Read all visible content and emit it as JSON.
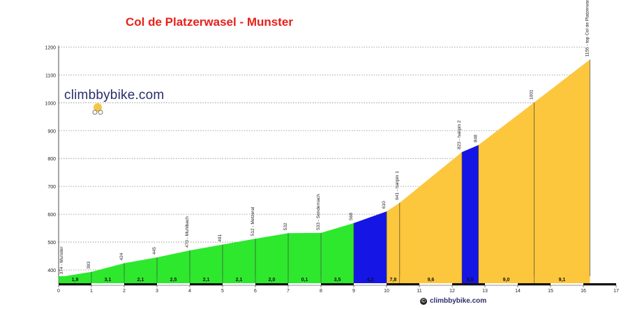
{
  "chart_data": {
    "type": "area",
    "title": "Col de Platzerwasel - Munster",
    "brand": "climbbybike.com",
    "credit": "climbbybike.com",
    "xlim": [
      0,
      17
    ],
    "ylim": [
      375,
      1200
    ],
    "x_ticks": [
      0,
      1,
      2,
      3,
      4,
      5,
      6,
      7,
      8,
      9,
      10,
      11,
      12,
      13,
      14,
      15,
      16,
      17
    ],
    "y_ticks": [
      400,
      500,
      600,
      700,
      800,
      900,
      1000,
      1100,
      1200
    ],
    "grid_y": true,
    "profile": [
      {
        "x": 0,
        "y": 374
      },
      {
        "x": 1,
        "y": 393
      },
      {
        "x": 2,
        "y": 424
      },
      {
        "x": 3,
        "y": 445
      },
      {
        "x": 4,
        "y": 470
      },
      {
        "x": 5,
        "y": 491
      },
      {
        "x": 6,
        "y": 512
      },
      {
        "x": 7,
        "y": 532
      },
      {
        "x": 8,
        "y": 533
      },
      {
        "x": 9,
        "y": 568
      },
      {
        "x": 10,
        "y": 610
      },
      {
        "x": 10.4,
        "y": 641
      },
      {
        "x": 12.3,
        "y": 823
      },
      {
        "x": 12.8,
        "y": 848
      },
      {
        "x": 14.5,
        "y": 1001
      },
      {
        "x": 16.2,
        "y": 1155
      }
    ],
    "segments": [
      {
        "from": 0,
        "to": 1,
        "gradient": "1,9",
        "color": "#2ee82e"
      },
      {
        "from": 1,
        "to": 2,
        "gradient": "3,1",
        "color": "#2ee82e"
      },
      {
        "from": 2,
        "to": 3,
        "gradient": "2,1",
        "color": "#2ee82e"
      },
      {
        "from": 3,
        "to": 4,
        "gradient": "2,5",
        "color": "#2ee82e"
      },
      {
        "from": 4,
        "to": 5,
        "gradient": "2,1",
        "color": "#2ee82e"
      },
      {
        "from": 5,
        "to": 6,
        "gradient": "2,1",
        "color": "#2ee82e"
      },
      {
        "from": 6,
        "to": 7,
        "gradient": "2,0",
        "color": "#2ee82e"
      },
      {
        "from": 7,
        "to": 8,
        "gradient": "0,1",
        "color": "#2ee82e"
      },
      {
        "from": 8,
        "to": 9,
        "gradient": "3,5",
        "color": "#2ee82e"
      },
      {
        "from": 9,
        "to": 10,
        "gradient": "4,2",
        "color": "#1515e6"
      },
      {
        "from": 10,
        "to": 10.4,
        "gradient": "7,8",
        "color": "#fcc63d"
      },
      {
        "from": 10.4,
        "to": 12.3,
        "gradient": "9,6",
        "color": "#fcc63d"
      },
      {
        "from": 12.3,
        "to": 12.8,
        "gradient": "5,0",
        "color": "#1515e6"
      },
      {
        "from": 12.8,
        "to": 14.5,
        "gradient": "9,0",
        "color": "#fcc63d"
      },
      {
        "from": 14.5,
        "to": 16.2,
        "gradient": "9,1",
        "color": "#fcc63d"
      }
    ],
    "waypoints": [
      {
        "x": 0,
        "label": "374 - Munster"
      },
      {
        "x": 1,
        "label": "393"
      },
      {
        "x": 2,
        "label": "424"
      },
      {
        "x": 3,
        "label": "445"
      },
      {
        "x": 4,
        "label": "470 - Muhlbach"
      },
      {
        "x": 5,
        "label": "491"
      },
      {
        "x": 6,
        "label": "512 - Metzeral"
      },
      {
        "x": 7,
        "label": "532"
      },
      {
        "x": 8,
        "label": "533 - Sondernach"
      },
      {
        "x": 9,
        "label": "568"
      },
      {
        "x": 10,
        "label": "610"
      },
      {
        "x": 10.4,
        "label": "641 - hairpin 1"
      },
      {
        "x": 12.3,
        "label": "823 - hairpin 2"
      },
      {
        "x": 12.8,
        "label": "848"
      },
      {
        "x": 14.5,
        "label": "1001"
      },
      {
        "x": 16.2,
        "label": "1155 - top Col de Platzerwasel"
      }
    ]
  }
}
